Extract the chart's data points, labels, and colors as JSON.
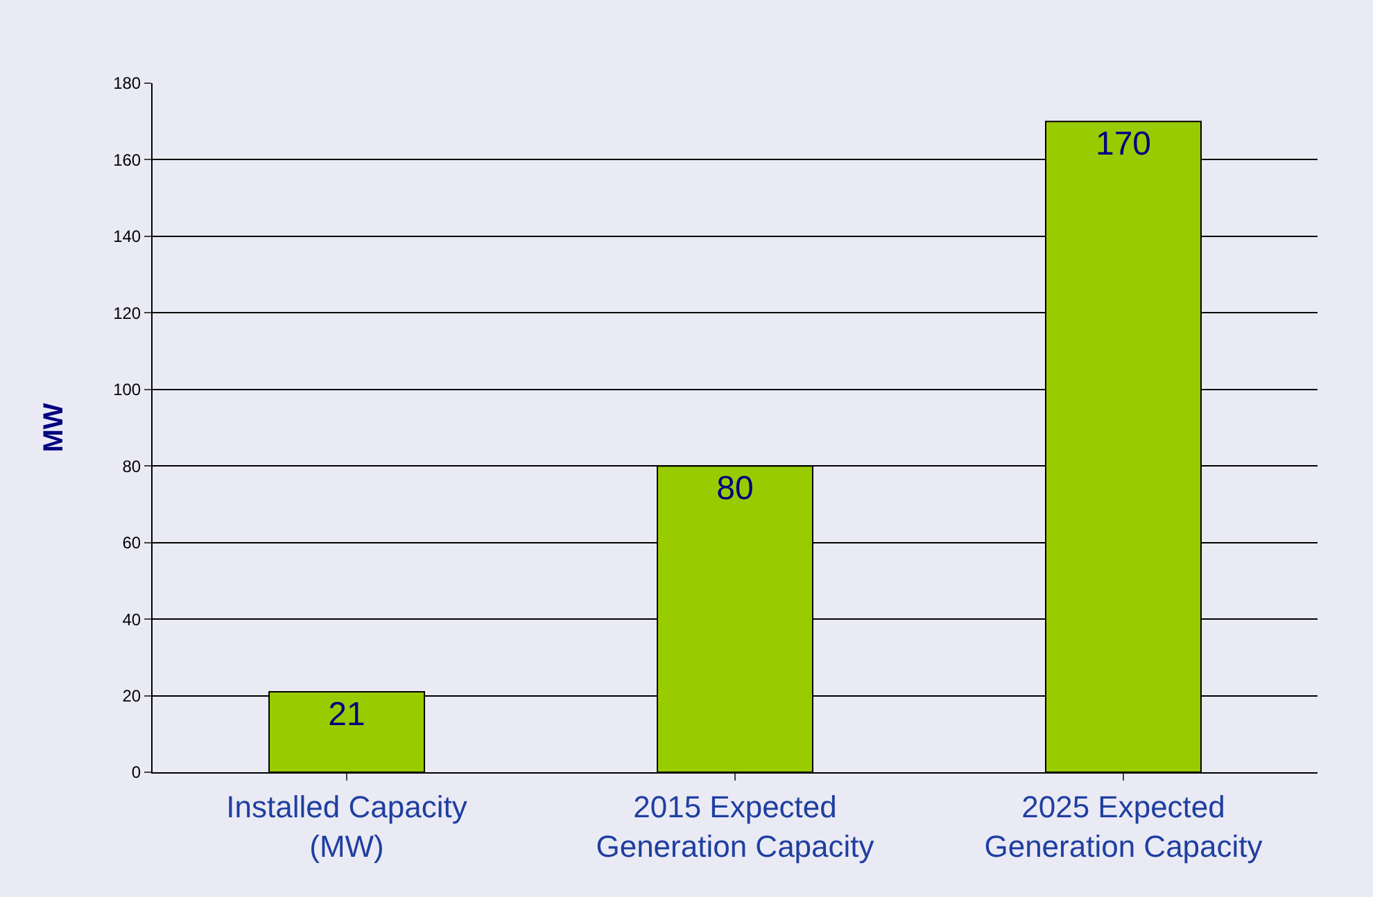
{
  "chart_data": {
    "type": "bar",
    "ylabel": "MW",
    "categories": [
      "Installed Capacity (MW)",
      "2015 Expected Generation Capacity",
      "2025 Expected Generation Capacity"
    ],
    "values": [
      21,
      80,
      170
    ],
    "color": "#99cc00",
    "data_labels": true,
    "ylim": [
      0,
      180
    ],
    "yticks": [
      0,
      20,
      40,
      60,
      80,
      100,
      120,
      140,
      160,
      180
    ],
    "grid": "y"
  }
}
